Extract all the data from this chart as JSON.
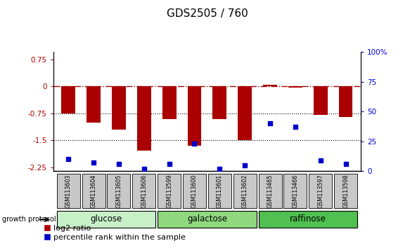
{
  "title": "GDS2505 / 760",
  "samples": [
    "GSM113603",
    "GSM113604",
    "GSM113605",
    "GSM113606",
    "GSM113599",
    "GSM113600",
    "GSM113601",
    "GSM113602",
    "GSM113465",
    "GSM113466",
    "GSM113597",
    "GSM113598"
  ],
  "log2_ratio": [
    -0.75,
    -1.0,
    -1.2,
    -1.78,
    -0.9,
    -1.65,
    -0.9,
    -1.5,
    0.05,
    -0.04,
    -0.8,
    -0.85
  ],
  "percentile_rank": [
    10,
    7,
    6,
    2,
    6,
    23,
    2,
    5,
    40,
    37,
    9,
    6
  ],
  "groups": [
    {
      "label": "glucose",
      "start": 0,
      "end": 3,
      "color": "#c8f0c8"
    },
    {
      "label": "galactose",
      "start": 4,
      "end": 7,
      "color": "#90d880"
    },
    {
      "label": "raffinose",
      "start": 8,
      "end": 11,
      "color": "#50c050"
    }
  ],
  "bar_color": "#aa0000",
  "dot_color": "#0000cc",
  "ylim_left": [
    -2.35,
    0.95
  ],
  "ylim_right": [
    0,
    100
  ],
  "yticks_left": [
    0.75,
    0,
    -0.75,
    -1.5,
    -2.25
  ],
  "yticks_right": [
    0,
    25,
    50,
    75,
    100
  ],
  "hline_y": 0,
  "dotted_lines": [
    -0.75,
    -1.5
  ],
  "background_color": "#ffffff",
  "plot_bg": "#ffffff",
  "bar_width": 0.55,
  "title_fontsize": 11,
  "tick_fontsize": 7.5,
  "legend_fontsize": 8,
  "group_label_fontsize": 8.5,
  "growth_protocol_label": "growth protocol",
  "legend": [
    "log2 ratio",
    "percentile rank within the sample"
  ],
  "sample_box_color": "#c8c8c8"
}
